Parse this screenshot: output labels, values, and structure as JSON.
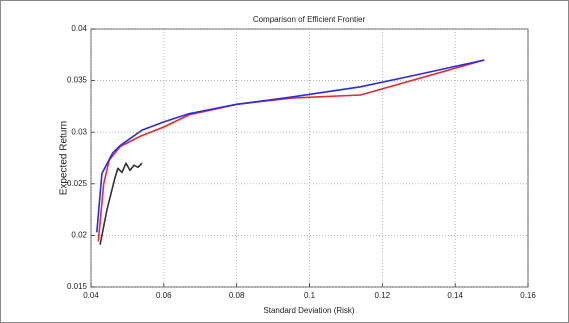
{
  "chart_data": {
    "type": "line",
    "title": "Comparison of Efficient Frontier",
    "xlabel": "Standard Deviation (Risk)",
    "ylabel": "Expected Return",
    "xlim": [
      0.04,
      0.16
    ],
    "xticks": [
      0.04,
      0.06,
      0.08,
      0.1,
      0.12,
      0.14,
      0.16
    ],
    "ylim": [
      0.015,
      0.04
    ],
    "yticks": [
      0.015,
      0.02,
      0.025,
      0.03,
      0.035,
      0.04
    ],
    "grid": true,
    "series": [
      {
        "color": "#e8282b",
        "x": [
          0.042,
          0.0435,
          0.045,
          0.048,
          0.0535,
          0.06,
          0.067,
          0.08,
          0.095,
          0.114,
          0.13,
          0.148
        ],
        "values": [
          0.0194,
          0.025,
          0.0273,
          0.0286,
          0.0296,
          0.0305,
          0.0317,
          0.0327,
          0.0333,
          0.0336,
          0.0352,
          0.037
        ]
      },
      {
        "color": "#2a2ae8",
        "x": [
          0.0416,
          0.043,
          0.046,
          0.048,
          0.054,
          0.06,
          0.067,
          0.08,
          0.095,
          0.114,
          0.13,
          0.148
        ],
        "values": [
          0.0203,
          0.026,
          0.028,
          0.0287,
          0.0302,
          0.031,
          0.0318,
          0.0327,
          0.0334,
          0.0344,
          0.0356,
          0.037
        ]
      },
      {
        "color": "#333333",
        "x": [
          0.0425,
          0.0444,
          0.0466,
          0.0474,
          0.0485,
          0.0496,
          0.0507,
          0.0518,
          0.0529,
          0.054
        ],
        "values": [
          0.0191,
          0.0225,
          0.0256,
          0.0265,
          0.0261,
          0.027,
          0.0263,
          0.0268,
          0.0266,
          0.027
        ]
      }
    ]
  }
}
